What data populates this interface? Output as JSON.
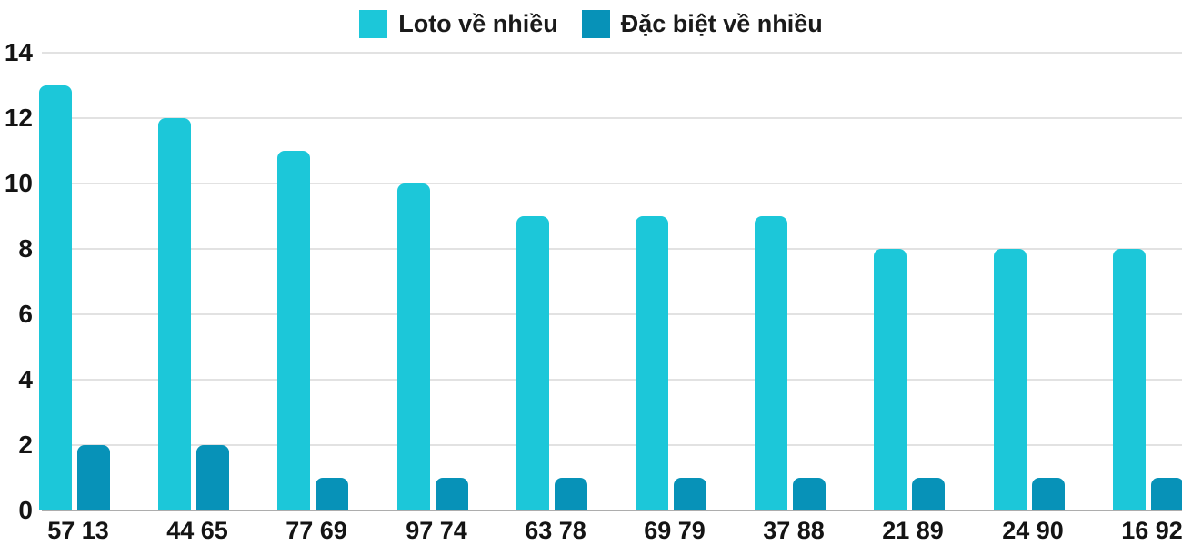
{
  "chart_data": {
    "type": "bar",
    "title": "",
    "xlabel": "",
    "ylabel": "",
    "categories": [
      "57 13",
      "44 65",
      "77 69",
      "97 74",
      "63 78",
      "69 79",
      "37 88",
      "21 89",
      "24 90",
      "16 92"
    ],
    "series": [
      {
        "name": "Loto về nhiều",
        "color": "#1cc7d9",
        "values": [
          13,
          12,
          11,
          10,
          9,
          9,
          9,
          8,
          8,
          8
        ]
      },
      {
        "name": "Đặc biệt về nhiều",
        "color": "#0792b8",
        "values": [
          2,
          2,
          1,
          1,
          1,
          1,
          1,
          1,
          1,
          1
        ]
      }
    ],
    "ylim": [
      0,
      14
    ],
    "yticks": [
      0,
      2,
      4,
      6,
      8,
      10,
      12,
      14
    ],
    "grid": "horizontal",
    "legend_position": "top",
    "colors": {
      "gridline": "#e2e2e2",
      "baseline": "#adadad",
      "text": "#141414",
      "background": "#ffffff"
    }
  }
}
